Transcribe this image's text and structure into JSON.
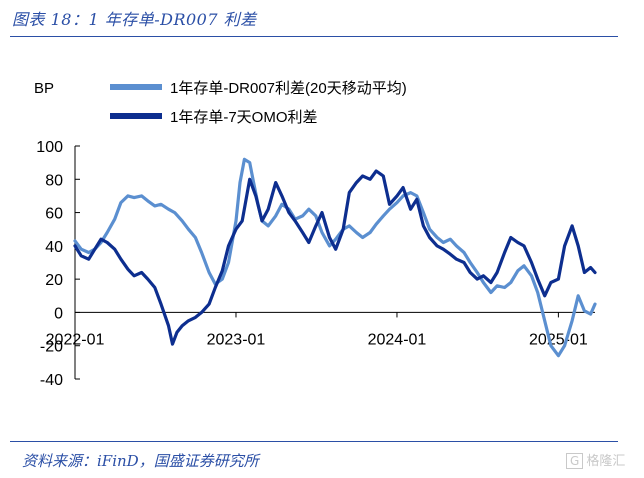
{
  "figure_title": "图表 18：1 年存单-DR007 利差",
  "source_text": "资料来源：iFinD，国盛证券研究所",
  "watermark_text": "格隆汇",
  "watermark_icon": "g-logo-icon",
  "colors": {
    "accent": "#2b4fa6",
    "series_light": "#5b8fd0",
    "series_dark": "#0d2e8f"
  },
  "chart_data": {
    "type": "line",
    "unit_label": "BP",
    "ylim": [
      -40,
      100
    ],
    "y_ticks": [
      -40,
      -20,
      0,
      20,
      40,
      60,
      80,
      100
    ],
    "x_tick_labels": [
      "2022-01",
      "2023-01",
      "2024-01",
      "2025-01"
    ],
    "x_tick_dates": [
      "2022-01-01",
      "2023-01-01",
      "2024-01-01",
      "2025-01-01"
    ],
    "xlim": [
      "2022-01-01",
      "2025-03-25"
    ],
    "grid": false,
    "legend_position": "top-center",
    "series": [
      {
        "name": "1年存单-DR007利差(20天移动平均)",
        "color": "#5b8fd0",
        "points": [
          [
            "2022-01-01",
            43
          ],
          [
            "2022-01-15",
            38
          ],
          [
            "2022-02-01",
            36
          ],
          [
            "2022-02-15",
            38
          ],
          [
            "2022-03-01",
            42
          ],
          [
            "2022-03-15",
            48
          ],
          [
            "2022-04-01",
            56
          ],
          [
            "2022-04-15",
            66
          ],
          [
            "2022-05-01",
            70
          ],
          [
            "2022-05-15",
            69
          ],
          [
            "2022-06-01",
            70
          ],
          [
            "2022-06-15",
            67
          ],
          [
            "2022-07-01",
            64
          ],
          [
            "2022-07-15",
            65
          ],
          [
            "2022-08-01",
            62
          ],
          [
            "2022-08-15",
            60
          ],
          [
            "2022-09-01",
            55
          ],
          [
            "2022-09-15",
            50
          ],
          [
            "2022-10-01",
            45
          ],
          [
            "2022-10-15",
            36
          ],
          [
            "2022-11-01",
            24
          ],
          [
            "2022-11-15",
            17
          ],
          [
            "2022-12-01",
            20
          ],
          [
            "2022-12-15",
            30
          ],
          [
            "2023-01-01",
            55
          ],
          [
            "2023-01-10",
            78
          ],
          [
            "2023-01-20",
            92
          ],
          [
            "2023-02-01",
            90
          ],
          [
            "2023-02-10",
            78
          ],
          [
            "2023-02-20",
            65
          ],
          [
            "2023-03-01",
            55
          ],
          [
            "2023-03-15",
            52
          ],
          [
            "2023-04-01",
            58
          ],
          [
            "2023-04-15",
            65
          ],
          [
            "2023-05-01",
            62
          ],
          [
            "2023-05-15",
            56
          ],
          [
            "2023-06-01",
            58
          ],
          [
            "2023-06-15",
            62
          ],
          [
            "2023-07-01",
            58
          ],
          [
            "2023-07-15",
            48
          ],
          [
            "2023-08-01",
            40
          ],
          [
            "2023-08-15",
            44
          ],
          [
            "2023-09-01",
            50
          ],
          [
            "2023-09-15",
            52
          ],
          [
            "2023-10-01",
            48
          ],
          [
            "2023-10-15",
            45
          ],
          [
            "2023-11-01",
            48
          ],
          [
            "2023-11-15",
            53
          ],
          [
            "2023-12-01",
            58
          ],
          [
            "2023-12-15",
            62
          ],
          [
            "2024-01-01",
            66
          ],
          [
            "2024-01-15",
            70
          ],
          [
            "2024-02-01",
            72
          ],
          [
            "2024-02-15",
            70
          ],
          [
            "2024-03-01",
            60
          ],
          [
            "2024-03-15",
            50
          ],
          [
            "2024-04-01",
            45
          ],
          [
            "2024-04-15",
            42
          ],
          [
            "2024-05-01",
            44
          ],
          [
            "2024-05-15",
            40
          ],
          [
            "2024-06-01",
            36
          ],
          [
            "2024-06-15",
            30
          ],
          [
            "2024-07-01",
            24
          ],
          [
            "2024-07-15",
            18
          ],
          [
            "2024-08-01",
            12
          ],
          [
            "2024-08-15",
            16
          ],
          [
            "2024-09-01",
            15
          ],
          [
            "2024-09-15",
            18
          ],
          [
            "2024-10-01",
            25
          ],
          [
            "2024-10-15",
            28
          ],
          [
            "2024-11-01",
            22
          ],
          [
            "2024-11-15",
            12
          ],
          [
            "2024-12-01",
            -5
          ],
          [
            "2024-12-15",
            -20
          ],
          [
            "2025-01-01",
            -26
          ],
          [
            "2025-01-15",
            -20
          ],
          [
            "2025-02-01",
            -5
          ],
          [
            "2025-02-15",
            10
          ],
          [
            "2025-03-01",
            1
          ],
          [
            "2025-03-15",
            -1
          ],
          [
            "2025-03-25",
            5
          ]
        ]
      },
      {
        "name": "1年存单-7天OMO利差",
        "color": "#0d2e8f",
        "points": [
          [
            "2022-01-01",
            40
          ],
          [
            "2022-01-15",
            34
          ],
          [
            "2022-02-01",
            32
          ],
          [
            "2022-02-15",
            38
          ],
          [
            "2022-03-01",
            44
          ],
          [
            "2022-03-15",
            42
          ],
          [
            "2022-04-01",
            38
          ],
          [
            "2022-04-15",
            32
          ],
          [
            "2022-05-01",
            26
          ],
          [
            "2022-05-15",
            22
          ],
          [
            "2022-06-01",
            24
          ],
          [
            "2022-06-15",
            20
          ],
          [
            "2022-07-01",
            15
          ],
          [
            "2022-07-15",
            5
          ],
          [
            "2022-08-01",
            -8
          ],
          [
            "2022-08-10",
            -19
          ],
          [
            "2022-08-20",
            -12
          ],
          [
            "2022-09-01",
            -8
          ],
          [
            "2022-09-15",
            -5
          ],
          [
            "2022-10-01",
            -3
          ],
          [
            "2022-10-15",
            0
          ],
          [
            "2022-11-01",
            5
          ],
          [
            "2022-11-15",
            15
          ],
          [
            "2022-12-01",
            25
          ],
          [
            "2022-12-15",
            40
          ],
          [
            "2023-01-01",
            50
          ],
          [
            "2023-01-15",
            55
          ],
          [
            "2023-02-01",
            80
          ],
          [
            "2023-02-15",
            70
          ],
          [
            "2023-03-01",
            55
          ],
          [
            "2023-03-15",
            62
          ],
          [
            "2023-04-01",
            78
          ],
          [
            "2023-04-15",
            70
          ],
          [
            "2023-05-01",
            60
          ],
          [
            "2023-05-15",
            55
          ],
          [
            "2023-06-01",
            48
          ],
          [
            "2023-06-15",
            42
          ],
          [
            "2023-07-01",
            52
          ],
          [
            "2023-07-15",
            60
          ],
          [
            "2023-08-01",
            45
          ],
          [
            "2023-08-15",
            38
          ],
          [
            "2023-09-01",
            50
          ],
          [
            "2023-09-15",
            72
          ],
          [
            "2023-10-01",
            78
          ],
          [
            "2023-10-15",
            82
          ],
          [
            "2023-11-01",
            80
          ],
          [
            "2023-11-15",
            85
          ],
          [
            "2023-12-01",
            82
          ],
          [
            "2023-12-15",
            65
          ],
          [
            "2024-01-01",
            70
          ],
          [
            "2024-01-15",
            75
          ],
          [
            "2024-02-01",
            62
          ],
          [
            "2024-02-15",
            68
          ],
          [
            "2024-03-01",
            52
          ],
          [
            "2024-03-15",
            45
          ],
          [
            "2024-04-01",
            40
          ],
          [
            "2024-04-15",
            38
          ],
          [
            "2024-05-01",
            35
          ],
          [
            "2024-05-15",
            32
          ],
          [
            "2024-06-01",
            30
          ],
          [
            "2024-06-15",
            24
          ],
          [
            "2024-07-01",
            20
          ],
          [
            "2024-07-15",
            22
          ],
          [
            "2024-08-01",
            18
          ],
          [
            "2024-08-15",
            24
          ],
          [
            "2024-09-01",
            36
          ],
          [
            "2024-09-15",
            45
          ],
          [
            "2024-10-01",
            42
          ],
          [
            "2024-10-15",
            40
          ],
          [
            "2024-11-01",
            30
          ],
          [
            "2024-11-15",
            20
          ],
          [
            "2024-12-01",
            10
          ],
          [
            "2024-12-15",
            18
          ],
          [
            "2025-01-01",
            20
          ],
          [
            "2025-01-15",
            40
          ],
          [
            "2025-02-01",
            52
          ],
          [
            "2025-02-15",
            40
          ],
          [
            "2025-03-01",
            24
          ],
          [
            "2025-03-15",
            27
          ],
          [
            "2025-03-25",
            24
          ]
        ]
      }
    ]
  }
}
